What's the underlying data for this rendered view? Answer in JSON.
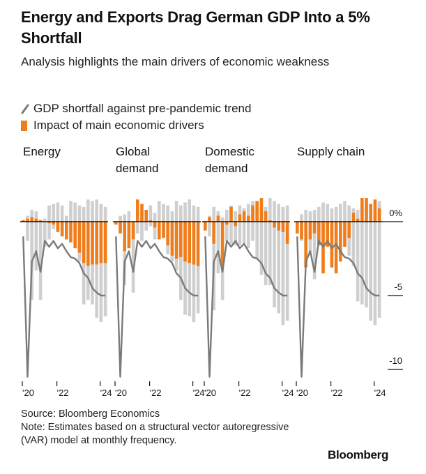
{
  "header": {
    "title": "Energy and Exports Drag German GDP Into a 5% Shortfall",
    "subtitle": "Analysis highlights the main drivers of economic weakness"
  },
  "legend": {
    "line_label": "GDP shortfall against pre-pandemic trend",
    "bar_label": "Impact of main economic drivers"
  },
  "footer": {
    "source": "Source: Bloomberg Economics",
    "note": "Note: Estimates based on a structural vector autoregressive (VAR) model at monthly frequency."
  },
  "brand": "Bloomberg",
  "colors": {
    "driver_bar": "#f07d1b",
    "other_bar": "#cfcfcf",
    "gdp_line": "#7a7a7a",
    "zero_line": "#111111"
  },
  "chart_data": {
    "type": "bar",
    "y_axis": {
      "ylim": [
        -10,
        1
      ],
      "ticks": [
        0,
        -5,
        -10
      ],
      "tick_labels": [
        "0%",
        "-5",
        "-10"
      ]
    },
    "x_tick_labels": [
      "'20",
      "'22",
      "'24"
    ],
    "x_tick_index": [
      0,
      8,
      18
    ],
    "quarters": [
      "2020Q1",
      "2020Q2",
      "2020Q3",
      "2020Q4",
      "2021Q1",
      "2021Q2",
      "2021Q3",
      "2021Q4",
      "2022Q1",
      "2022Q2",
      "2022Q3",
      "2022Q4",
      "2023Q1",
      "2023Q2",
      "2023Q3",
      "2023Q4",
      "2024Q1",
      "2024Q2",
      "2024Q3",
      "2024Q4"
    ],
    "gdp_shortfall": [
      -1.0,
      -10.5,
      -2.7,
      -2.0,
      -3.4,
      -1.3,
      -1.7,
      -1.3,
      -1.8,
      -1.5,
      -2.0,
      -2.4,
      -2.5,
      -2.8,
      -3.5,
      -3.8,
      -4.5,
      -4.8,
      -5.0,
      -5.0
    ],
    "panels": [
      {
        "title": "Energy",
        "other_bars": [
          [
            0,
            0
          ],
          [
            0.4,
            -1.3
          ],
          [
            0.8,
            -5.3
          ],
          [
            0.7,
            -3.3
          ],
          [
            0.1,
            -5.3
          ],
          [
            0.2,
            -1.7
          ],
          [
            1.1,
            -1.2
          ],
          [
            1.2,
            -0.5
          ],
          [
            1.3,
            0
          ],
          [
            1.1,
            0
          ],
          [
            0.4,
            -0.1
          ],
          [
            1.4,
            -0.3
          ],
          [
            1.3,
            -0.8
          ],
          [
            1.1,
            -2.7
          ],
          [
            1.0,
            -5.6
          ],
          [
            1.5,
            -5.3
          ],
          [
            1.4,
            -5.6
          ],
          [
            1.5,
            -6.5
          ],
          [
            1.2,
            -6.8
          ],
          [
            1.0,
            -6.4
          ]
        ],
        "values": [
          0.1,
          0.2,
          0.3,
          0.2,
          0.1,
          0,
          -0.1,
          -0.2,
          -0.7,
          -1.0,
          -1.2,
          -1.4,
          -1.8,
          -2.1,
          -2.8,
          -3.0,
          -2.9,
          -2.9,
          -2.8,
          -2.8
        ]
      },
      {
        "title": "Global demand",
        "other_bars": [
          [
            0,
            0
          ],
          [
            0.4,
            -0.8
          ],
          [
            0.5,
            -4.3
          ],
          [
            0.7,
            -1.8
          ],
          [
            0,
            -4.8
          ],
          [
            0.8,
            -0.8
          ],
          [
            0.6,
            -1.3
          ],
          [
            0.8,
            -0.6
          ],
          [
            1.1,
            -0.3
          ],
          [
            0.6,
            -1.2
          ],
          [
            1.4,
            -0.5
          ],
          [
            1.2,
            -1.1
          ],
          [
            1.1,
            -2.2
          ],
          [
            0.7,
            -2.7
          ],
          [
            1.4,
            -3.3
          ],
          [
            1.1,
            -5.3
          ],
          [
            1.3,
            -6.3
          ],
          [
            1.5,
            -6.4
          ],
          [
            1.1,
            -6.8
          ],
          [
            1.0,
            -6.2
          ]
        ],
        "values": [
          -0.2,
          -0.8,
          -2.0,
          -1.8,
          -1.2,
          1.5,
          1.2,
          0.8,
          0.1,
          -0.4,
          -1.2,
          -1.1,
          -1.6,
          -2.3,
          -2.5,
          -2.4,
          -2.7,
          -2.8,
          -2.9,
          -3.0
        ]
      },
      {
        "title": "Domestic demand",
        "other_bars": [
          [
            0,
            0
          ],
          [
            0.4,
            -1.0
          ],
          [
            1.0,
            -6.0
          ],
          [
            0.7,
            -3.5
          ],
          [
            0.3,
            -5.3
          ],
          [
            0.8,
            -1.3
          ],
          [
            1.1,
            -1.5
          ],
          [
            0.7,
            -1.6
          ],
          [
            1.1,
            -1.6
          ],
          [
            0.9,
            -1.5
          ],
          [
            1.2,
            -1.8
          ],
          [
            1.4,
            -1.3
          ],
          [
            1.3,
            -2.5
          ],
          [
            1.1,
            -3.6
          ],
          [
            1.0,
            -4.3
          ],
          [
            1.6,
            -4.3
          ],
          [
            1.4,
            -5.8
          ],
          [
            1.2,
            -6.2
          ],
          [
            1.0,
            -7.0
          ],
          [
            1.1,
            -6.7
          ]
        ],
        "values": [
          -0.6,
          0.3,
          -1.5,
          0.4,
          -3.0,
          -0.2,
          1.0,
          -0.3,
          0.5,
          0.7,
          0.4,
          1.1,
          1.4,
          1.6,
          0.7,
          0.1,
          -0.4,
          -0.6,
          -0.7,
          -1.5
        ]
      },
      {
        "title": "Supply chain",
        "other_bars": [
          [
            0,
            0
          ],
          [
            0.5,
            -1.3
          ],
          [
            0.8,
            -2.6
          ],
          [
            0.7,
            -2.1
          ],
          [
            0.8,
            -3.9
          ],
          [
            1.0,
            -1.0
          ],
          [
            1.3,
            -1.3
          ],
          [
            1.2,
            -0.9
          ],
          [
            0.9,
            -1.1
          ],
          [
            1.0,
            -1.0
          ],
          [
            1.2,
            -2.4
          ],
          [
            1.4,
            -1.4
          ],
          [
            1.1,
            -2.3
          ],
          [
            0.9,
            -3.0
          ],
          [
            0.8,
            -5.4
          ],
          [
            1.1,
            -5.6
          ],
          [
            1.3,
            -5.8
          ],
          [
            1.1,
            -6.7
          ],
          [
            1.1,
            -7.0
          ],
          [
            1.4,
            -6.5
          ]
        ],
        "values": [
          -0.8,
          -1.2,
          -3.1,
          -1.2,
          -0.8,
          -1.6,
          -3.5,
          -1.7,
          -3.1,
          -3.5,
          -2.7,
          -1.7,
          -1.1,
          0.6,
          0.2,
          1.6,
          1.6,
          1.2,
          1.5,
          0.9
        ]
      }
    ]
  }
}
